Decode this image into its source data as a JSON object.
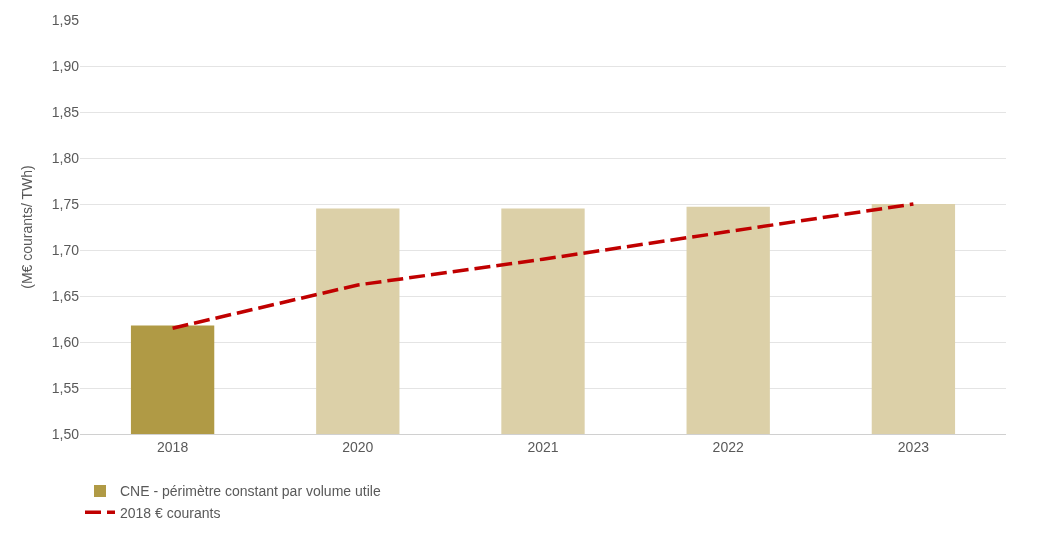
{
  "chart_data": {
    "type": "bar",
    "ylabel": "(M€ courants/ TWh)",
    "categories": [
      "2018",
      "2020",
      "2021",
      "2022",
      "2023"
    ],
    "series": [
      {
        "name": "CNE - périmètre constant par volume utile",
        "colors": [
          "#b09a45",
          "#dcd0a8",
          "#dcd0a8",
          "#dcd0a8",
          "#dcd0a8"
        ],
        "values": [
          1.618,
          1.745,
          1.745,
          1.747,
          1.75
        ]
      },
      {
        "name": "2018 € courants",
        "type": "line",
        "color": "#c00000",
        "line_style": "dashed",
        "marker": "none",
        "values": [
          1.615,
          1.662,
          1.69,
          1.72,
          1.75
        ]
      }
    ],
    "ylim": [
      1.5,
      1.95
    ],
    "yticks": [
      {
        "value": 1.5,
        "label": "1,50"
      },
      {
        "value": 1.55,
        "label": "1,55"
      },
      {
        "value": 1.6,
        "label": "1,60"
      },
      {
        "value": 1.65,
        "label": "1,65"
      },
      {
        "value": 1.7,
        "label": "1,70"
      },
      {
        "value": 1.75,
        "label": "1,75"
      },
      {
        "value": 1.8,
        "label": "1,80"
      },
      {
        "value": 1.85,
        "label": "1,85"
      },
      {
        "value": 1.9,
        "label": "1,90"
      },
      {
        "value": 1.95,
        "label": "1,95"
      }
    ],
    "grid": "y",
    "legend": "bottom left"
  }
}
